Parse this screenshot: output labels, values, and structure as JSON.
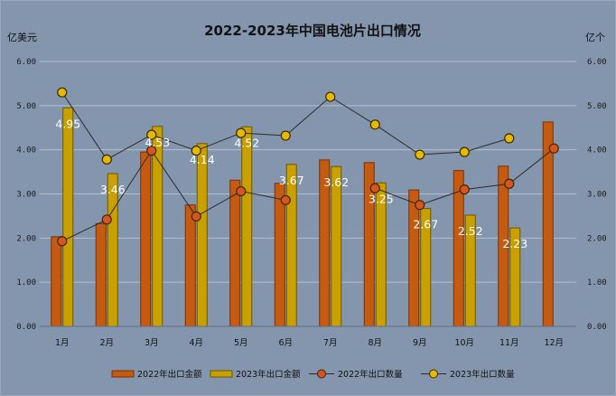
{
  "chart_data": {
    "type": "bar",
    "title": "2022-2023年中国电池片出口情况",
    "ylabel_left": "亿美元",
    "ylabel_right": "亿个",
    "ylim_left": [
      0,
      6
    ],
    "ylim_right": [
      0,
      6
    ],
    "yticks": [
      "0.00",
      "1.00",
      "2.00",
      "3.00",
      "4.00",
      "5.00",
      "6.00"
    ],
    "categories": [
      "1月",
      "2月",
      "3月",
      "4月",
      "5月",
      "6月",
      "7月",
      "8月",
      "9月",
      "10月",
      "11月",
      "12月"
    ],
    "grid": true,
    "legend_position": "bottom",
    "series": [
      {
        "name": "2022年出口金额",
        "kind": "bar",
        "axis": "left",
        "color": "#c55a11",
        "values": [
          2.03,
          2.33,
          3.95,
          2.75,
          3.31,
          3.24,
          3.77,
          3.71,
          3.09,
          3.53,
          3.63,
          4.63
        ]
      },
      {
        "name": "2023年出口金额",
        "kind": "bar",
        "axis": "left",
        "color": "#c8a000",
        "values": [
          4.95,
          3.46,
          4.53,
          4.14,
          4.52,
          3.67,
          3.62,
          3.25,
          2.67,
          2.52,
          2.23,
          null
        ],
        "labels": [
          "4.95",
          "3.46",
          "4.53",
          "4.14",
          "4.52",
          "3.67",
          "3.62",
          "3.25",
          "2.67",
          "2.52",
          "2.23",
          ""
        ]
      },
      {
        "name": "2022年出口数量",
        "kind": "line",
        "axis": "right",
        "color": "#d9541e",
        "values": [
          1.93,
          2.42,
          3.98,
          2.49,
          3.06,
          2.86,
          null,
          3.13,
          2.75,
          3.1,
          3.23,
          4.03
        ]
      },
      {
        "name": "2023年出口数量",
        "kind": "line",
        "axis": "right",
        "color": "#e6b800",
        "values": [
          5.3,
          3.78,
          4.34,
          3.98,
          4.38,
          4.32,
          5.2,
          4.57,
          3.89,
          3.95,
          4.26,
          null
        ]
      }
    ]
  }
}
